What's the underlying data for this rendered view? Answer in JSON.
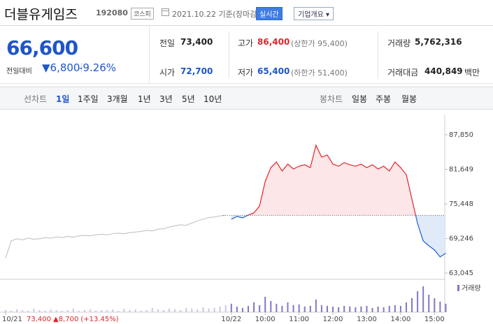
{
  "header": {
    "name": "더블유게임즈",
    "code": "192080",
    "market": "코스피",
    "date": "2021.10.22 기준(장마감)",
    "realtime": "실시간",
    "company_info": "기업개요 ▾"
  },
  "quote": {
    "price": "66,600",
    "change_label": "전일대비",
    "change": "▼6,800",
    "rate": "-9.26%",
    "prev_close": {
      "label": "전일",
      "value": "73,400"
    },
    "high": {
      "label": "고가",
      "value": "86,400",
      "note": "(상한가 95,400)"
    },
    "volume": {
      "label": "거래량",
      "value": "5,762,316"
    },
    "open": {
      "label": "시가",
      "value": "72,700"
    },
    "low": {
      "label": "저가",
      "value": "65,400",
      "note": "(하한가 51,400)"
    },
    "amount": {
      "label": "거래대금",
      "value": "440,849",
      "unit": "백만"
    }
  },
  "tabs": {
    "line_chart": "선차트",
    "periods": [
      "1일",
      "1주일",
      "3개월",
      "1년",
      "3년",
      "5년",
      "10년"
    ],
    "candle_chart": "봉차트",
    "candles": [
      "일봉",
      "주봉",
      "월봉"
    ]
  },
  "chart_data": {
    "type": "line",
    "categories": [
      "10/21",
      null,
      null,
      null,
      null,
      null,
      null,
      null,
      null,
      null,
      null,
      null,
      null,
      null,
      null,
      null,
      null,
      null,
      null,
      null,
      null,
      null,
      null,
      null,
      null,
      null,
      null,
      null,
      null,
      null,
      null,
      null,
      null,
      null,
      null,
      null,
      null,
      null,
      null,
      null,
      "10/22",
      null,
      null,
      null,
      null,
      null,
      "10:00",
      null,
      null,
      null,
      null,
      null,
      "11:00",
      null,
      null,
      null,
      null,
      null,
      "12:00",
      null,
      null,
      null,
      null,
      null,
      "13:00",
      null,
      null,
      null,
      null,
      null,
      "14:00",
      null,
      null,
      null,
      null,
      null,
      "15:00",
      null,
      null
    ],
    "series": [
      {
        "color": "#bdbdbd",
        "values": [
          65700,
          68800,
          69200,
          69000,
          69300,
          69100,
          69200,
          69400,
          69300,
          69500,
          69400,
          69600,
          69500,
          69700,
          69800,
          69700,
          69900,
          70000,
          69900,
          70100,
          70200,
          70100,
          70300,
          70400,
          70500,
          70700,
          70600,
          70900,
          71000,
          71300,
          71500,
          71700,
          71600,
          72000,
          72400,
          72700,
          73000,
          73100,
          73300,
          73400,
          null,
          null,
          null,
          null,
          null,
          null,
          null,
          null,
          null,
          null,
          null,
          null,
          null,
          null,
          null,
          null,
          null,
          null,
          null,
          null,
          null,
          null,
          null,
          null,
          null,
          null,
          null,
          null,
          null,
          null,
          null,
          null,
          null,
          null,
          null,
          null,
          null,
          null,
          null
        ]
      },
      {
        "up_color": "#e0252b",
        "down_color": "#1d5fd0",
        "up_fill": "#fde3e5",
        "down_fill": "#dde8f8",
        "values": [
          null,
          null,
          null,
          null,
          null,
          null,
          null,
          null,
          null,
          null,
          null,
          null,
          null,
          null,
          null,
          null,
          null,
          null,
          null,
          null,
          null,
          null,
          null,
          null,
          null,
          null,
          null,
          null,
          null,
          null,
          null,
          null,
          null,
          null,
          null,
          null,
          null,
          null,
          null,
          null,
          72700,
          73190,
          72940,
          73450,
          73820,
          75070,
          79460,
          81960,
          82970,
          81340,
          82590,
          81710,
          82210,
          82470,
          81960,
          85970,
          83840,
          84220,
          82590,
          82210,
          82840,
          82470,
          82210,
          82590,
          81960,
          82470,
          81710,
          82210,
          81340,
          82970,
          81960,
          80710,
          76330,
          71940,
          68810,
          67930,
          67180,
          65930,
          66600
        ]
      }
    ],
    "baseline": 73400,
    "ylim": [
      63045,
      87850
    ],
    "yticks": [
      {
        "value": 63045,
        "label": "63,045"
      },
      {
        "value": 69246,
        "label": "69,246"
      },
      {
        "value": 75448,
        "label": "75,448"
      },
      {
        "value": 81649,
        "label": "81,649"
      },
      {
        "value": 87850,
        "label": "87,850"
      }
    ],
    "volume": {
      "name": "거래량",
      "color": "#8177c9",
      "prev_day_color": "#cbc6e6",
      "ylim": [
        0,
        400000
      ],
      "values": [
        30000,
        20000,
        40000,
        30000,
        20000,
        50000,
        30000,
        20000,
        40000,
        30000,
        20000,
        30000,
        50000,
        20000,
        30000,
        40000,
        20000,
        30000,
        30000,
        40000,
        20000,
        50000,
        30000,
        40000,
        20000,
        30000,
        60000,
        40000,
        30000,
        50000,
        40000,
        30000,
        60000,
        50000,
        40000,
        70000,
        50000,
        60000,
        80000,
        100000,
        120000,
        80000,
        60000,
        90000,
        140000,
        100000,
        220000,
        160000,
        120000,
        90000,
        140000,
        100000,
        110000,
        80000,
        90000,
        180000,
        100000,
        90000,
        80000,
        70000,
        90000,
        80000,
        70000,
        80000,
        90000,
        60000,
        80000,
        70000,
        90000,
        100000,
        90000,
        140000,
        200000,
        300000,
        370000,
        250000,
        200000,
        150000,
        120000
      ]
    },
    "info": {
      "price": "73,400",
      "change": "▲8,700",
      "rate": "(+13.45%)"
    }
  }
}
